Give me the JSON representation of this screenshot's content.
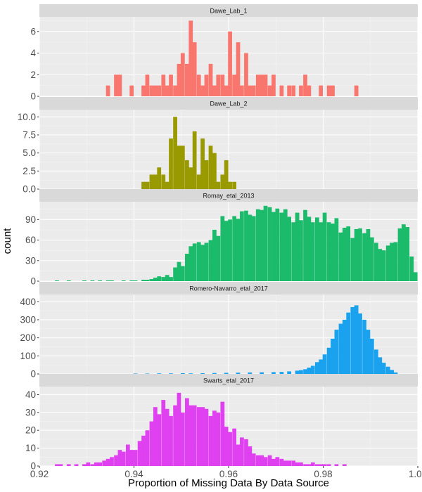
{
  "chart_data": {
    "type": "bar",
    "xlabel": "Proportion of Missing Data By Data Source",
    "ylabel": "count",
    "xlim": [
      0.92,
      1.0
    ],
    "xticks": [
      "0.92",
      "0.94",
      "0.96",
      "0.98",
      "1.00"
    ],
    "xtick_values": [
      0.92,
      0.94,
      0.96,
      0.98,
      1.0
    ],
    "bin_width": 0.000833,
    "grid": true,
    "legend": "none",
    "background": "#ebebeb",
    "strip_background": "#d9d9d9",
    "panels": [
      {
        "name": "Dawe_Lab_1",
        "color": "#f8766d",
        "ymax": 7.35,
        "yticks": [
          "0",
          "2",
          "4",
          "6"
        ],
        "ytick_values": [
          0,
          2,
          4,
          6
        ],
        "bars": [
          [
            0.9345,
            1
          ],
          [
            0.9362,
            2
          ],
          [
            0.937,
            2
          ],
          [
            0.9395,
            1
          ],
          [
            0.942,
            1
          ],
          [
            0.9428,
            2
          ],
          [
            0.9437,
            1
          ],
          [
            0.9445,
            1
          ],
          [
            0.9453,
            1
          ],
          [
            0.9462,
            2
          ],
          [
            0.947,
            1
          ],
          [
            0.9478,
            2
          ],
          [
            0.9487,
            1
          ],
          [
            0.9495,
            3
          ],
          [
            0.9503,
            4
          ],
          [
            0.9512,
            3
          ],
          [
            0.952,
            7
          ],
          [
            0.9528,
            5
          ],
          [
            0.9537,
            2
          ],
          [
            0.9545,
            1
          ],
          [
            0.9553,
            2
          ],
          [
            0.9562,
            3
          ],
          [
            0.957,
            1
          ],
          [
            0.9578,
            2
          ],
          [
            0.9587,
            2
          ],
          [
            0.9595,
            1
          ],
          [
            0.9603,
            6
          ],
          [
            0.9612,
            2
          ],
          [
            0.962,
            5
          ],
          [
            0.9628,
            1
          ],
          [
            0.9637,
            4
          ],
          [
            0.9645,
            1
          ],
          [
            0.9653,
            1
          ],
          [
            0.9662,
            2
          ],
          [
            0.967,
            2
          ],
          [
            0.9678,
            2
          ],
          [
            0.9687,
            1
          ],
          [
            0.9695,
            2
          ],
          [
            0.9712,
            1
          ],
          [
            0.9728,
            1
          ],
          [
            0.9737,
            1
          ],
          [
            0.9753,
            1
          ],
          [
            0.9762,
            2
          ],
          [
            0.977,
            1
          ],
          [
            0.9795,
            1
          ],
          [
            0.9812,
            1
          ],
          [
            0.982,
            1
          ],
          [
            0.987,
            1
          ]
        ]
      },
      {
        "name": "Dawe_Lab_2",
        "color": "#999900",
        "ymax": 11.0,
        "yticks": [
          "0.0",
          "2.5",
          "5.0",
          "7.5",
          "10.0"
        ],
        "ytick_values": [
          0,
          2.5,
          5,
          7.5,
          10
        ],
        "bars": [
          [
            0.942,
            1
          ],
          [
            0.9428,
            1
          ],
          [
            0.9437,
            2
          ],
          [
            0.9445,
            2
          ],
          [
            0.9453,
            3
          ],
          [
            0.9462,
            2
          ],
          [
            0.947,
            1
          ],
          [
            0.9478,
            7
          ],
          [
            0.9487,
            10
          ],
          [
            0.9495,
            6
          ],
          [
            0.9503,
            6
          ],
          [
            0.9512,
            4
          ],
          [
            0.952,
            3
          ],
          [
            0.9528,
            8
          ],
          [
            0.9537,
            2
          ],
          [
            0.9545,
            7
          ],
          [
            0.9553,
            4
          ],
          [
            0.9562,
            6
          ],
          [
            0.957,
            5
          ],
          [
            0.9578,
            1
          ],
          [
            0.9587,
            2
          ],
          [
            0.9595,
            4
          ],
          [
            0.9603,
            1
          ],
          [
            0.9612,
            1
          ]
        ]
      },
      {
        "name": "Romay_etal_2013",
        "color": "#1cbb6b",
        "ymax": 116.0,
        "yticks": [
          "0",
          "30",
          "60",
          "90"
        ],
        "ytick_values": [
          0,
          30,
          60,
          90
        ],
        "bars": [
          [
            0.9237,
            1
          ],
          [
            0.9262,
            1
          ],
          [
            0.9295,
            1
          ],
          [
            0.9312,
            1
          ],
          [
            0.9328,
            1
          ],
          [
            0.9345,
            1
          ],
          [
            0.9353,
            1
          ],
          [
            0.9378,
            1
          ],
          [
            0.9395,
            1
          ],
          [
            0.9403,
            1
          ],
          [
            0.942,
            2
          ],
          [
            0.9428,
            2
          ],
          [
            0.9437,
            3
          ],
          [
            0.9445,
            5
          ],
          [
            0.9453,
            7
          ],
          [
            0.9462,
            6
          ],
          [
            0.947,
            9
          ],
          [
            0.9478,
            6
          ],
          [
            0.9487,
            20
          ],
          [
            0.9495,
            28
          ],
          [
            0.9503,
            22
          ],
          [
            0.9512,
            40
          ],
          [
            0.952,
            51
          ],
          [
            0.9528,
            55
          ],
          [
            0.9537,
            57
          ],
          [
            0.9545,
            53
          ],
          [
            0.9553,
            56
          ],
          [
            0.9562,
            60
          ],
          [
            0.957,
            75
          ],
          [
            0.9578,
            66
          ],
          [
            0.9587,
            95
          ],
          [
            0.9595,
            88
          ],
          [
            0.9603,
            90
          ],
          [
            0.9612,
            95
          ],
          [
            0.962,
            91
          ],
          [
            0.9628,
            102
          ],
          [
            0.9637,
            103
          ],
          [
            0.9645,
            97
          ],
          [
            0.9653,
            95
          ],
          [
            0.9662,
            105
          ],
          [
            0.967,
            104
          ],
          [
            0.9678,
            110
          ],
          [
            0.9687,
            108
          ],
          [
            0.9695,
            101
          ],
          [
            0.9703,
            106
          ],
          [
            0.9712,
            100
          ],
          [
            0.972,
            105
          ],
          [
            0.9728,
            94
          ],
          [
            0.9737,
            86
          ],
          [
            0.9745,
            100
          ],
          [
            0.9753,
            89
          ],
          [
            0.9762,
            104
          ],
          [
            0.977,
            94
          ],
          [
            0.9778,
            86
          ],
          [
            0.9787,
            93
          ],
          [
            0.9795,
            86
          ],
          [
            0.9803,
            100
          ],
          [
            0.9812,
            86
          ],
          [
            0.982,
            84
          ],
          [
            0.9828,
            92
          ],
          [
            0.9837,
            71
          ],
          [
            0.9845,
            78
          ],
          [
            0.9853,
            80
          ],
          [
            0.9862,
            63
          ],
          [
            0.987,
            76
          ],
          [
            0.9878,
            77
          ],
          [
            0.9887,
            70
          ],
          [
            0.9895,
            76
          ],
          [
            0.9903,
            64
          ],
          [
            0.9912,
            56
          ],
          [
            0.992,
            47
          ],
          [
            0.9928,
            45
          ],
          [
            0.9937,
            52
          ],
          [
            0.9945,
            56
          ],
          [
            0.9953,
            57
          ],
          [
            0.9962,
            77
          ],
          [
            0.997,
            83
          ],
          [
            0.9978,
            79
          ],
          [
            0.9987,
            36
          ],
          [
            0.9995,
            13
          ]
        ]
      },
      {
        "name": "Romero-Navarro_etal_2017",
        "color": "#1aa2ef",
        "ymax": 440.0,
        "yticks": [
          "0",
          "100",
          "200",
          "300",
          "400"
        ],
        "ytick_values": [
          0,
          100,
          200,
          300,
          400
        ],
        "bars": [
          [
            0.9403,
            2
          ],
          [
            0.9428,
            2
          ],
          [
            0.9453,
            3
          ],
          [
            0.9478,
            3
          ],
          [
            0.9503,
            4
          ],
          [
            0.952,
            3
          ],
          [
            0.9545,
            4
          ],
          [
            0.957,
            5
          ],
          [
            0.9595,
            6
          ],
          [
            0.962,
            7
          ],
          [
            0.9645,
            8
          ],
          [
            0.967,
            9
          ],
          [
            0.9695,
            10
          ],
          [
            0.9712,
            11
          ],
          [
            0.9728,
            14
          ],
          [
            0.9745,
            18
          ],
          [
            0.9753,
            21
          ],
          [
            0.9762,
            26
          ],
          [
            0.977,
            35
          ],
          [
            0.9778,
            45
          ],
          [
            0.9787,
            65
          ],
          [
            0.9795,
            80
          ],
          [
            0.9803,
            108
          ],
          [
            0.9812,
            145
          ],
          [
            0.982,
            195
          ],
          [
            0.9828,
            245
          ],
          [
            0.9837,
            278
          ],
          [
            0.9845,
            300
          ],
          [
            0.9853,
            340
          ],
          [
            0.9862,
            370
          ],
          [
            0.987,
            380
          ],
          [
            0.9878,
            335
          ],
          [
            0.9887,
            300
          ],
          [
            0.9895,
            245
          ],
          [
            0.9903,
            195
          ],
          [
            0.9912,
            135
          ],
          [
            0.992,
            92
          ],
          [
            0.9928,
            62
          ],
          [
            0.9937,
            40
          ],
          [
            0.9945,
            22
          ],
          [
            0.9953,
            8
          ]
        ]
      },
      {
        "name": "Swarts_etal_2017",
        "color": "#e041f0",
        "ymax": 44.5,
        "yticks": [
          "0",
          "10",
          "20",
          "30",
          "40"
        ],
        "ytick_values": [
          0,
          10,
          20,
          30,
          40
        ],
        "bars": [
          [
            0.9237,
            1
          ],
          [
            0.9245,
            1
          ],
          [
            0.9262,
            1
          ],
          [
            0.9278,
            1
          ],
          [
            0.9295,
            1
          ],
          [
            0.9303,
            2
          ],
          [
            0.9312,
            1
          ],
          [
            0.932,
            2
          ],
          [
            0.9328,
            2
          ],
          [
            0.9337,
            3
          ],
          [
            0.9345,
            4
          ],
          [
            0.9353,
            5
          ],
          [
            0.9362,
            6
          ],
          [
            0.937,
            9
          ],
          [
            0.9378,
            8
          ],
          [
            0.9387,
            12
          ],
          [
            0.9395,
            9
          ],
          [
            0.9403,
            9
          ],
          [
            0.9412,
            14
          ],
          [
            0.942,
            17
          ],
          [
            0.9428,
            20
          ],
          [
            0.9437,
            25
          ],
          [
            0.9445,
            33
          ],
          [
            0.9453,
            29
          ],
          [
            0.9462,
            37
          ],
          [
            0.947,
            32
          ],
          [
            0.9478,
            28
          ],
          [
            0.9487,
            34
          ],
          [
            0.9495,
            41
          ],
          [
            0.9503,
            30
          ],
          [
            0.9512,
            38
          ],
          [
            0.952,
            34
          ],
          [
            0.9528,
            34
          ],
          [
            0.9537,
            33
          ],
          [
            0.9545,
            33
          ],
          [
            0.9553,
            32
          ],
          [
            0.9562,
            28
          ],
          [
            0.957,
            31
          ],
          [
            0.9578,
            30
          ],
          [
            0.9587,
            36
          ],
          [
            0.9595,
            22
          ],
          [
            0.9603,
            19
          ],
          [
            0.9612,
            21
          ],
          [
            0.962,
            12
          ],
          [
            0.9628,
            16
          ],
          [
            0.9637,
            15
          ],
          [
            0.9645,
            11
          ],
          [
            0.9653,
            7
          ],
          [
            0.9662,
            6
          ],
          [
            0.967,
            6
          ],
          [
            0.9678,
            5
          ],
          [
            0.9687,
            6
          ],
          [
            0.9695,
            4
          ],
          [
            0.9703,
            5
          ],
          [
            0.9712,
            4
          ],
          [
            0.972,
            3
          ],
          [
            0.9728,
            3
          ],
          [
            0.9737,
            3
          ],
          [
            0.9745,
            2
          ],
          [
            0.9753,
            2
          ],
          [
            0.9762,
            1
          ],
          [
            0.977,
            1
          ],
          [
            0.9778,
            2
          ],
          [
            0.9787,
            1
          ],
          [
            0.9795,
            1
          ],
          [
            0.9803,
            1
          ],
          [
            0.9812,
            1
          ],
          [
            0.9828,
            1
          ],
          [
            0.9845,
            1
          ]
        ]
      }
    ]
  }
}
